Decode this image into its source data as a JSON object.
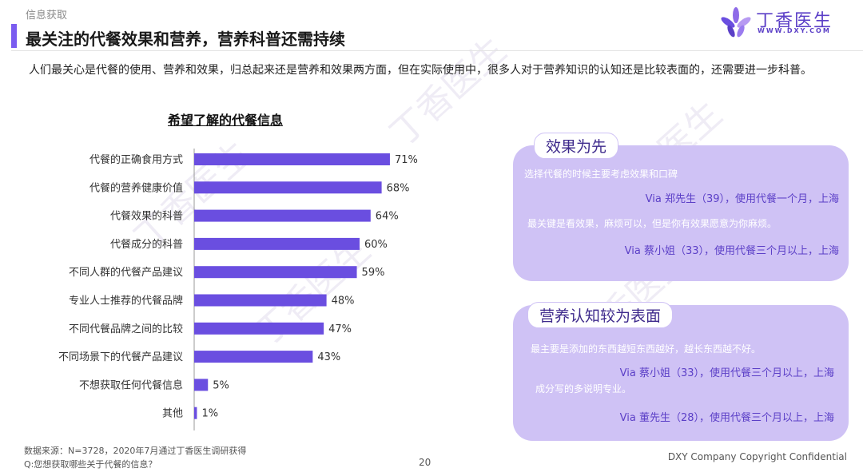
{
  "section_label": "信息获取",
  "title": "最关注的代餐效果和营养，营养科普还需持续",
  "logo": {
    "name": "丁香医生",
    "url": "WWW.DXY.COM"
  },
  "intro": "人们最关心是代餐的使用、营养和效果，归总起来还是营养和效果两方面，但在实际使用中，很多人对于营养知识的认知还是比较表面的，还需要进一步科普。",
  "chart_data": {
    "type": "bar",
    "orientation": "horizontal",
    "title": "希望了解的代餐信息",
    "categories": [
      "代餐的正确食用方式",
      "代餐的营养健康价值",
      "代餐效果的科普",
      "代餐成分的科普",
      "不同人群的代餐产品建议",
      "专业人士推荐的代餐品牌",
      "不同代餐品牌之间的比较",
      "不同场景下的代餐产品建议",
      "不想获取任何代餐信息",
      "其他"
    ],
    "values": [
      71,
      68,
      64,
      60,
      59,
      48,
      47,
      43,
      5,
      1
    ],
    "value_labels": [
      "71%",
      "68%",
      "64%",
      "60%",
      "59%",
      "48%",
      "47%",
      "43%",
      "5%",
      "1%"
    ],
    "unit": "%",
    "xlim": [
      0,
      100
    ],
    "bar_color": "#6a4ee0",
    "grid": false
  },
  "cards": [
    {
      "tag": "效果为先",
      "quotes": [
        {
          "text": "选择代餐的时候主要考虑效果和口碑",
          "via": "Via 郑先生（39），使用代餐一个月，上海"
        },
        {
          "text": "最关键是看效果，麻烦可以，但是你有效果愿意为你麻烦。",
          "via": "Via 蔡小姐（33），使用代餐三个月以上，上海"
        }
      ]
    },
    {
      "tag": "营养认知较为表面",
      "quotes": [
        {
          "text": "最主要是添加的东西越短东西越好，越长东西越不好。",
          "via": "Via 蔡小姐（33），使用代餐三个月以上，上海"
        },
        {
          "text": "成分写的多说明专业。",
          "via": "Via 董先生（28），使用代餐三个月以上，上海"
        }
      ]
    }
  ],
  "footnote_source": "数据来源：N=3728，2020年7月通过丁香医生调研获得",
  "footnote_question": "Q:您想获取哪些关于代餐的信息？",
  "page_number": "20",
  "copyright": "DXY Company Copyright Confidential",
  "colors": {
    "accent": "#7a5cf0",
    "bar": "#6a4ee0",
    "card": "#cfc2f5",
    "brand": "#5b3fc7"
  }
}
